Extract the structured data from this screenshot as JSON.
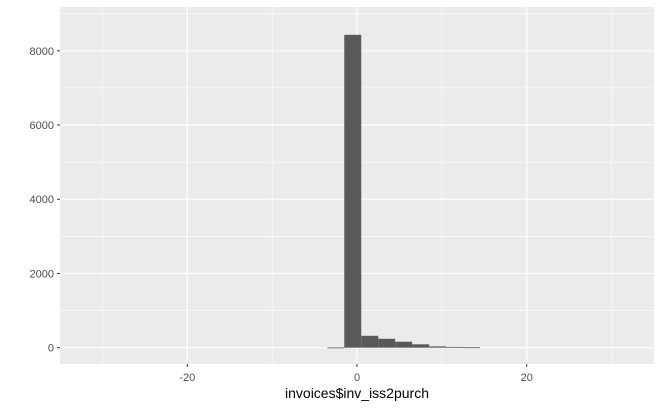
{
  "chart_data": {
    "type": "bar",
    "subtype": "histogram",
    "title": "",
    "xlabel": "invoices$inv_iss2purch",
    "ylabel": "",
    "xlim": [
      -35,
      35
    ],
    "ylim": [
      -440,
      9180
    ],
    "x_ticks": [
      -20,
      0,
      20
    ],
    "x_tick_labels": [
      "-20",
      "0",
      "20"
    ],
    "y_ticks": [
      0,
      2000,
      4000,
      6000,
      8000
    ],
    "y_tick_labels": [
      "0",
      "2000",
      "4000",
      "6000",
      "8000"
    ],
    "grid": true,
    "legend": "none",
    "colors": {
      "panel": "#ebebeb",
      "grid": "#ffffff",
      "bar": "#595959"
    },
    "bins": [
      {
        "start": -3.5,
        "end": -1.5,
        "count": 5
      },
      {
        "start": -1.5,
        "end": 0.5,
        "count": 8430
      },
      {
        "start": 0.5,
        "end": 2.5,
        "count": 320
      },
      {
        "start": 2.5,
        "end": 4.5,
        "count": 240
      },
      {
        "start": 4.5,
        "end": 6.5,
        "count": 160
      },
      {
        "start": 6.5,
        "end": 8.5,
        "count": 90
      },
      {
        "start": 8.5,
        "end": 10.5,
        "count": 35
      },
      {
        "start": 10.5,
        "end": 12.5,
        "count": 20
      },
      {
        "start": 12.5,
        "end": 14.5,
        "count": 10
      }
    ]
  }
}
